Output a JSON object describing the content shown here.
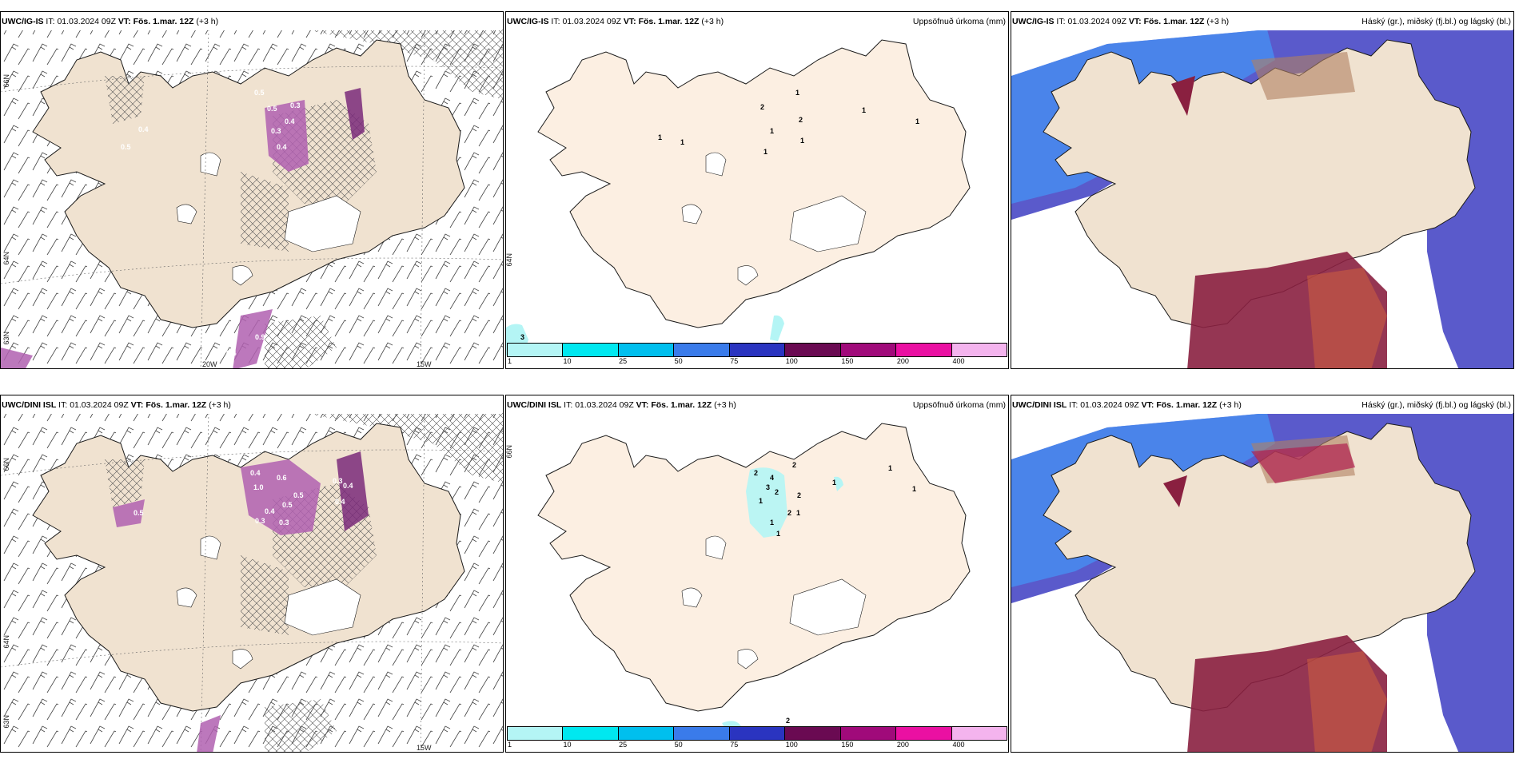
{
  "panels": [
    {
      "model": "UWC/IG-IS",
      "it_label": "IT:",
      "it_value": "01.03.2024 09Z",
      "vt_label": "VT:",
      "vt_value": "Fös. 1.mar. 12Z",
      "offset": "(+3 h)",
      "right": ""
    },
    {
      "model": "UWC/IG-IS",
      "it_label": "IT:",
      "it_value": "01.03.2024 09Z",
      "vt_label": "VT:",
      "vt_value": "Fös. 1.mar. 12Z",
      "offset": "(+3 h)",
      "right": "Uppsöfnuð úrkoma (mm)"
    },
    {
      "model": "UWC/IG-IS",
      "it_label": "IT:",
      "it_value": "01.03.2024 09Z",
      "vt_label": "VT:",
      "vt_value": "Fös. 1.mar. 12Z",
      "offset": "(+3 h)",
      "right": "Háský (gr.), miðský (fj.bl.) og lágský (bl.)"
    },
    {
      "model": "UWC/DINI ISL",
      "it_label": "IT:",
      "it_value": "01.03.2024 09Z",
      "vt_label": "VT:",
      "vt_value": "Fös. 1.mar. 12Z",
      "offset": "(+3 h)",
      "right": ""
    },
    {
      "model": "UWC/DINI ISL",
      "it_label": "IT:",
      "it_value": "01.03.2024 09Z",
      "vt_label": "VT:",
      "vt_value": "Fös. 1.mar. 12Z",
      "offset": "(+3 h)",
      "right": "Uppsöfnuð úrkoma (mm)"
    },
    {
      "model": "UWC/DINI ISL",
      "it_label": "IT:",
      "it_value": "01.03.2024 09Z",
      "vt_label": "VT:",
      "vt_value": "Fös. 1.mar. 12Z",
      "offset": "(+3 h)",
      "right": "Háský (gr.), miðský (fj.bl.) og lágský (bl.)"
    }
  ],
  "grid_labels": {
    "lat_66": "66N",
    "lat_64": "64N",
    "lat_63": "63N",
    "lon_20": "20W",
    "lon_15": "15W",
    "lat_66_mid": "66N",
    "lat_64_mid": "64N"
  },
  "precip_legend": {
    "ticks": [
      "1",
      "10",
      "25",
      "50",
      "75",
      "100",
      "150",
      "200",
      "400"
    ],
    "colors": [
      "#b4f5f5",
      "#00e8f0",
      "#00bfee",
      "#3a7bea",
      "#2a34c0",
      "#6a0a52",
      "#a00a7a",
      "#ea10a2",
      "#f4b4ee"
    ]
  },
  "precip_labels_top": [
    {
      "text": "2"
    },
    {
      "text": "1"
    },
    {
      "text": "1"
    },
    {
      "text": "2"
    },
    {
      "text": "1"
    },
    {
      "text": "1"
    },
    {
      "text": "1"
    },
    {
      "text": "1"
    },
    {
      "text": "1"
    },
    {
      "text": "1"
    },
    {
      "text": "3"
    }
  ],
  "precip_labels_bottom": [
    {
      "text": "2"
    },
    {
      "text": "2"
    },
    {
      "text": "4"
    },
    {
      "text": "3"
    },
    {
      "text": "2"
    },
    {
      "text": "2"
    },
    {
      "text": "1"
    },
    {
      "text": "2"
    },
    {
      "text": "1"
    },
    {
      "text": "1"
    },
    {
      "text": "1"
    },
    {
      "text": "1"
    },
    {
      "text": "1"
    },
    {
      "text": "1"
    },
    {
      "text": "2"
    }
  ],
  "icing_labels_top": [
    {
      "text": "0.3"
    },
    {
      "text": "0.5"
    },
    {
      "text": "0.5"
    },
    {
      "text": "0.4"
    },
    {
      "text": "0.3"
    },
    {
      "text": "0.4"
    },
    {
      "text": "0.5"
    },
    {
      "text": "0.4"
    },
    {
      "text": "0.9"
    },
    {
      "text": "0.4"
    }
  ],
  "icing_labels_bottom": [
    {
      "text": "0.4"
    },
    {
      "text": "1.0"
    },
    {
      "text": "0.6"
    },
    {
      "text": "0.5"
    },
    {
      "text": "0.4"
    },
    {
      "text": "0.3"
    },
    {
      "text": "0.5"
    },
    {
      "text": "0.4"
    },
    {
      "text": "0.3"
    },
    {
      "text": "0.4"
    },
    {
      "text": "0.5"
    },
    {
      "text": "0.3"
    }
  ],
  "colors": {
    "land": "#f0e2d0",
    "land_precip": "#fcefe2",
    "glacier": "#ffffff",
    "coast": "#1a1a1a",
    "icing": "#b060b0",
    "icing_dark": "#7a2a7a",
    "cloud_high": "#b0b0b0",
    "cloud_mid": "#4040c0",
    "cloud_low": "#40a0ff"
  }
}
